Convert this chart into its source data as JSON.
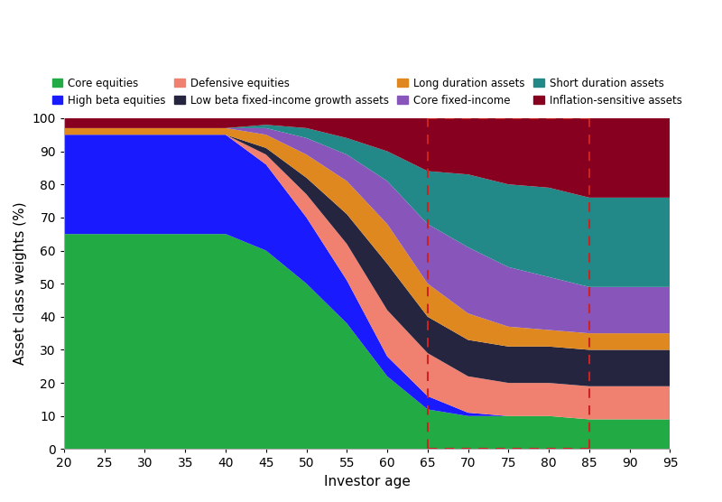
{
  "ages": [
    20,
    25,
    30,
    35,
    40,
    45,
    50,
    55,
    60,
    65,
    70,
    75,
    80,
    85,
    90,
    95
  ],
  "series": {
    "Core equities": {
      "color": "#22aa44",
      "values": [
        65,
        65,
        65,
        65,
        65,
        60,
        50,
        38,
        22,
        12,
        10,
        10,
        10,
        9,
        9,
        9
      ]
    },
    "High beta equities": {
      "color": "#1a1aff",
      "values": [
        30,
        30,
        30,
        30,
        30,
        26,
        20,
        13,
        6,
        4,
        1,
        0,
        0,
        0,
        0,
        0
      ]
    },
    "Defensive equities": {
      "color": "#f08070",
      "values": [
        0,
        0,
        0,
        0,
        0,
        3,
        7,
        11,
        14,
        13,
        11,
        10,
        10,
        10,
        10,
        10
      ]
    },
    "Low beta fixed-income growth assets": {
      "color": "#252540",
      "values": [
        0,
        0,
        0,
        0,
        0,
        2,
        5,
        9,
        14,
        11,
        11,
        11,
        11,
        11,
        11,
        11
      ]
    },
    "Long duration assets": {
      "color": "#e08820",
      "values": [
        2,
        2,
        2,
        2,
        2,
        4,
        7,
        10,
        12,
        10,
        8,
        6,
        5,
        5,
        5,
        5
      ]
    },
    "Core fixed-income": {
      "color": "#8855bb",
      "values": [
        0,
        0,
        0,
        0,
        0,
        2,
        5,
        8,
        13,
        18,
        20,
        18,
        16,
        14,
        14,
        14
      ]
    },
    "Short duration assets": {
      "color": "#228888",
      "values": [
        0,
        0,
        0,
        0,
        0,
        1,
        3,
        5,
        9,
        16,
        22,
        25,
        27,
        27,
        27,
        27
      ]
    },
    "Inflation-sensitive assets": {
      "color": "#880020",
      "values": [
        3,
        3,
        3,
        3,
        3,
        2,
        3,
        6,
        10,
        16,
        17,
        20,
        21,
        24,
        24,
        24
      ]
    }
  },
  "xlabel": "Investor age",
  "ylabel": "Asset class weights (%)",
  "ylim": [
    0,
    100
  ],
  "xlim": [
    20,
    95
  ],
  "xticks": [
    20,
    25,
    30,
    35,
    40,
    45,
    50,
    55,
    60,
    65,
    70,
    75,
    80,
    85,
    90,
    95
  ],
  "yticks": [
    0,
    10,
    20,
    30,
    40,
    50,
    60,
    70,
    80,
    90,
    100
  ],
  "vline1": 65,
  "vline2": 85,
  "legend_order": [
    "Core equities",
    "High beta equities",
    "Defensive equities",
    "Low beta fixed-income growth assets",
    "Long duration assets",
    "Core fixed-income",
    "Short duration assets",
    "Inflation-sensitive assets"
  ]
}
